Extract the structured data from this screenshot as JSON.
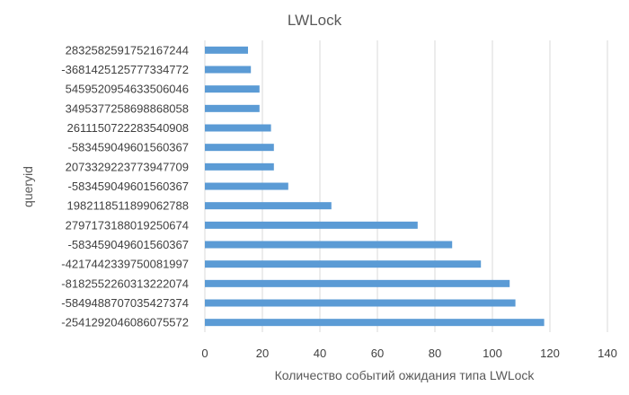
{
  "chart_data": {
    "type": "bar",
    "orientation": "horizontal",
    "title": "LWLock",
    "xlabel": "Количество событий ожидания типа LWLock",
    "ylabel": "queryid",
    "xlim": [
      0,
      140
    ],
    "x_ticks": [
      "0",
      "20",
      "40",
      "60",
      "80",
      "100",
      "120",
      "140"
    ],
    "grid": "vertical",
    "legend": "none",
    "bar_color": "#5b9bd5",
    "categories": [
      "2832582591752167244",
      "-3681425125777334772",
      "5459520954633506046",
      "3495377258698868058",
      "2611150722283540908",
      "-583459049601560367",
      "2073329223773947709",
      "-583459049601560367",
      "1982118511899062788",
      "2797173188019250674",
      "-583459049601560367",
      "-4217442339750081997",
      "-8182552260313222074",
      "-5849488707035427374",
      "-2541292046086075572"
    ],
    "values": [
      15,
      16,
      19,
      19,
      23,
      24,
      24,
      29,
      44,
      74,
      86,
      96,
      106,
      108,
      118
    ]
  }
}
